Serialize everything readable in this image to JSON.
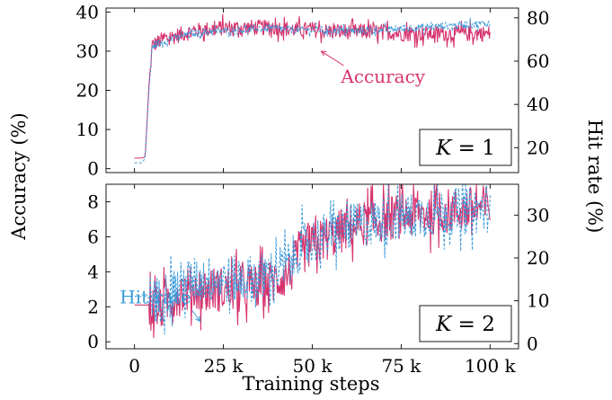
{
  "colors": {
    "accuracy": "#d6336e",
    "hit_rate": "#3a9ad9",
    "axis": "#000000"
  },
  "chart_data": [
    {
      "type": "line",
      "panel": "top",
      "box_label": {
        "var": "K",
        "rest": " = 1"
      },
      "xlim": [
        -8,
        108
      ],
      "ylim_left": [
        -1,
        41
      ],
      "ylim_right": [
        8.5,
        84.5
      ],
      "left_ticks": [
        "0",
        "10",
        "20",
        "30",
        "40"
      ],
      "left_tick_values": [
        0,
        10,
        20,
        30,
        40
      ],
      "right_ticks": [
        "20",
        "40",
        "60",
        "80"
      ],
      "right_tick_values": [
        20,
        40,
        60,
        80
      ],
      "annotation": {
        "text": "Accuracy",
        "series": "Accuracy",
        "point": [
          52.5,
          30
        ]
      },
      "series": [
        {
          "name": "Accuracy",
          "axis": "left",
          "dashed": false,
          "x": [
            0,
            2,
            3,
            4,
            5,
            8,
            12,
            16,
            20,
            25,
            30,
            35,
            40,
            45,
            50,
            55,
            60,
            65,
            70,
            75,
            80,
            85,
            90,
            95,
            100
          ],
          "y": [
            2.7,
            2.7,
            3.0,
            20.0,
            31.5,
            33.0,
            34.0,
            35.0,
            35.5,
            36.0,
            36.0,
            36.0,
            36.0,
            35.5,
            35.5,
            35.0,
            35.0,
            35.0,
            35.0,
            34.5,
            34.5,
            34.5,
            34.5,
            34.5,
            34.5
          ],
          "noise": 2.0
        },
        {
          "name": "Hit rate",
          "axis": "right",
          "dashed": true,
          "x": [
            0,
            2,
            3,
            4,
            5,
            8,
            12,
            16,
            20,
            25,
            30,
            35,
            40,
            45,
            50,
            55,
            60,
            65,
            70,
            75,
            80,
            85,
            90,
            95,
            100
          ],
          "y": [
            13.0,
            13.0,
            15.0,
            45.0,
            67.0,
            69.0,
            71.0,
            72.5,
            73.5,
            74.0,
            74.5,
            75.0,
            75.0,
            74.5,
            74.5,
            74.0,
            74.0,
            74.0,
            74.5,
            75.0,
            75.5,
            76.0,
            76.5,
            77.0,
            77.5
          ],
          "noise": 1.8
        }
      ]
    },
    {
      "type": "line",
      "panel": "bottom",
      "box_label": {
        "var": "K",
        "rest": " = 2"
      },
      "xlabel": "Training steps",
      "xlim": [
        -8,
        108
      ],
      "x_ticks": [
        "0",
        "25 k",
        "50 k",
        "75 k",
        "100 k"
      ],
      "x_tick_values": [
        0,
        25,
        50,
        75,
        100
      ],
      "ylim_left": [
        -0.4,
        9.0
      ],
      "ylim_right": [
        -1.2,
        37.2
      ],
      "left_ticks": [
        "0",
        "2",
        "4",
        "6",
        "8"
      ],
      "left_tick_values": [
        0,
        2,
        4,
        6,
        8
      ],
      "right_ticks": [
        "0",
        "10",
        "20",
        "30"
      ],
      "right_tick_values": [
        0,
        10,
        20,
        30
      ],
      "annotation": {
        "text": "Hit rate",
        "series": "Hit rate",
        "point": [
          18.5,
          5.2
        ]
      },
      "series": [
        {
          "name": "Accuracy",
          "axis": "left",
          "dashed": false,
          "x": [
            0,
            5,
            6,
            7,
            10,
            15,
            20,
            25,
            30,
            35,
            40,
            44,
            46,
            50,
            55,
            60,
            65,
            70,
            75,
            80,
            85,
            90,
            95,
            100
          ],
          "y": [
            2.1,
            2.1,
            2.0,
            1.8,
            2.5,
            3.0,
            3.0,
            3.0,
            3.0,
            3.2,
            3.5,
            4.0,
            5.0,
            5.5,
            6.0,
            6.5,
            6.8,
            7.0,
            7.2,
            7.3,
            7.4,
            7.5,
            7.6,
            7.7
          ],
          "noise": 1.3
        },
        {
          "name": "Hit rate",
          "axis": "right",
          "dashed": true,
          "x": [
            0,
            5,
            6,
            7,
            10,
            15,
            20,
            25,
            30,
            35,
            40,
            44,
            46,
            50,
            55,
            60,
            65,
            70,
            75,
            80,
            85,
            90,
            95,
            100
          ],
          "y": [
            11.0,
            11.0,
            10.5,
            10.0,
            12.5,
            14.5,
            15.0,
            15.0,
            15.0,
            15.5,
            17.0,
            19.0,
            22.0,
            24.0,
            25.5,
            27.0,
            28.0,
            29.0,
            29.5,
            30.0,
            30.5,
            31.0,
            31.0,
            31.5
          ],
          "noise": 5.5
        }
      ]
    }
  ],
  "shared": {
    "ylabel_left": "Accuracy (%)",
    "ylabel_right": "Hit rate (%)"
  }
}
